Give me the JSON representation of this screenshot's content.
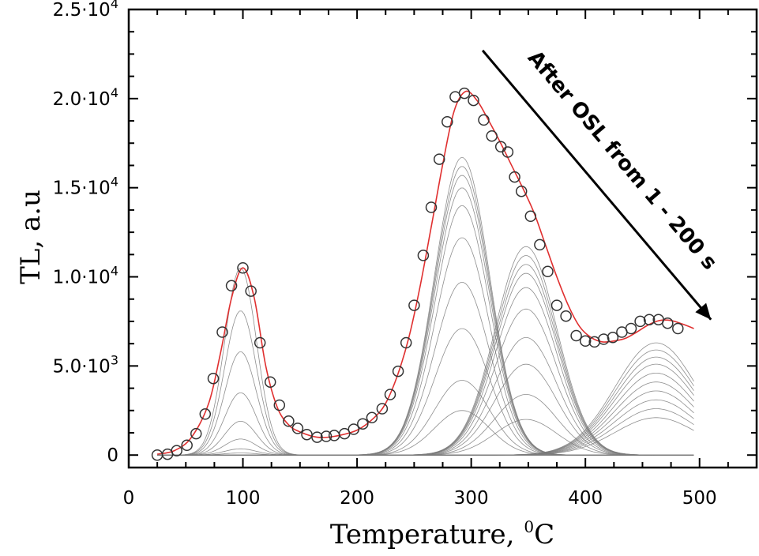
{
  "chart_data": {
    "type": "line",
    "title": "",
    "xlabel": "Temperature,",
    "xlabel_unit_sup": "0",
    "xlabel_unit": "C",
    "ylabel": "TL,  a.u",
    "xlim": [
      0,
      550
    ],
    "ylim": [
      -700,
      25000
    ],
    "x_ticks": [
      0,
      100,
      200,
      300,
      400,
      500
    ],
    "x_tick_labels": [
      "0",
      "100",
      "200",
      "300",
      "400",
      "500"
    ],
    "y_ticks": [
      0,
      5000,
      10000,
      15000,
      20000,
      25000
    ],
    "y_tick_labels": [
      {
        "mantissa": "0",
        "exp": ""
      },
      {
        "mantissa": "5.0·10",
        "exp": "3"
      },
      {
        "mantissa": "1.0·10",
        "exp": "4"
      },
      {
        "mantissa": "1.5·10",
        "exp": "4"
      },
      {
        "mantissa": "2.0·10",
        "exp": "4"
      },
      {
        "mantissa": "2.5·10",
        "exp": "4"
      }
    ],
    "annotation": {
      "text": "After OSL from 1 - 200 s",
      "arrow_from": [
        310,
        22700
      ],
      "arrow_to": [
        510,
        7600
      ]
    },
    "colors": {
      "fit": "#e03030",
      "components": "#7a7a7a",
      "markers": "#333333",
      "axis": "#000000"
    },
    "peaks": [
      {
        "center": 98,
        "sigma": 14,
        "amplitudes": [
          10500,
          8100,
          5800,
          3500,
          1900,
          900,
          350,
          120
        ]
      },
      {
        "center": 292,
        "sigma": 24,
        "amplitudes": [
          16700,
          16200,
          15700,
          15000,
          14000,
          12200,
          9700,
          7100,
          4200,
          2500
        ]
      },
      {
        "center": 348,
        "sigma": 27,
        "amplitudes": [
          11700,
          11200,
          10700,
          10200,
          9400,
          8200,
          6600,
          5100,
          3400,
          2000
        ]
      },
      {
        "center": 462,
        "sigma": 36,
        "amplitudes": [
          6300,
          5900,
          5500,
          5100,
          4600,
          4100,
          3600,
          3100,
          2600,
          2100
        ]
      }
    ],
    "fit_envelope": [
      [
        25,
        50
      ],
      [
        40,
        250
      ],
      [
        55,
        1000
      ],
      [
        70,
        2900
      ],
      [
        80,
        5600
      ],
      [
        90,
        8800
      ],
      [
        100,
        10500
      ],
      [
        110,
        8800
      ],
      [
        120,
        5000
      ],
      [
        130,
        2700
      ],
      [
        140,
        1700
      ],
      [
        150,
        1300
      ],
      [
        165,
        1000
      ],
      [
        180,
        1050
      ],
      [
        200,
        1400
      ],
      [
        215,
        2100
      ],
      [
        225,
        2900
      ],
      [
        235,
        4400
      ],
      [
        245,
        6500
      ],
      [
        255,
        9400
      ],
      [
        265,
        12800
      ],
      [
        275,
        16300
      ],
      [
        285,
        19300
      ],
      [
        295,
        20400
      ],
      [
        305,
        19900
      ],
      [
        315,
        18800
      ],
      [
        325,
        17600
      ],
      [
        335,
        16300
      ],
      [
        345,
        15000
      ],
      [
        355,
        13600
      ],
      [
        365,
        11800
      ],
      [
        375,
        10000
      ],
      [
        385,
        8400
      ],
      [
        395,
        7200
      ],
      [
        405,
        6600
      ],
      [
        415,
        6350
      ],
      [
        425,
        6400
      ],
      [
        435,
        6550
      ],
      [
        445,
        6900
      ],
      [
        455,
        7300
      ],
      [
        465,
        7550
      ],
      [
        475,
        7550
      ],
      [
        485,
        7350
      ],
      [
        495,
        7100
      ]
    ],
    "data_points": [
      [
        25,
        0
      ],
      [
        34,
        50
      ],
      [
        42,
        250
      ],
      [
        51,
        550
      ],
      [
        59,
        1200
      ],
      [
        67,
        2300
      ],
      [
        74,
        4300
      ],
      [
        82,
        6900
      ],
      [
        90,
        9500
      ],
      [
        100,
        10500
      ],
      [
        107,
        9200
      ],
      [
        115,
        6300
      ],
      [
        124,
        4100
      ],
      [
        132,
        2800
      ],
      [
        140,
        1900
      ],
      [
        148,
        1500
      ],
      [
        156,
        1150
      ],
      [
        165,
        1000
      ],
      [
        173,
        1050
      ],
      [
        180,
        1100
      ],
      [
        189,
        1200
      ],
      [
        197,
        1450
      ],
      [
        205,
        1750
      ],
      [
        213,
        2100
      ],
      [
        222,
        2600
      ],
      [
        229,
        3400
      ],
      [
        236,
        4700
      ],
      [
        243,
        6300
      ],
      [
        250,
        8400
      ],
      [
        258,
        11200
      ],
      [
        265,
        13900
      ],
      [
        272,
        16600
      ],
      [
        279,
        18700
      ],
      [
        286,
        20100
      ],
      [
        294,
        20300
      ],
      [
        302,
        19900
      ],
      [
        311,
        18800
      ],
      [
        318,
        17900
      ],
      [
        326,
        17300
      ],
      [
        332,
        17000
      ],
      [
        338,
        15600
      ],
      [
        344,
        14800
      ],
      [
        352,
        13400
      ],
      [
        360,
        11800
      ],
      [
        367,
        10300
      ],
      [
        375,
        8400
      ],
      [
        383,
        7800
      ],
      [
        392,
        6700
      ],
      [
        400,
        6400
      ],
      [
        408,
        6350
      ],
      [
        416,
        6500
      ],
      [
        424,
        6600
      ],
      [
        432,
        6900
      ],
      [
        440,
        7100
      ],
      [
        448,
        7500
      ],
      [
        456,
        7600
      ],
      [
        464,
        7600
      ],
      [
        472,
        7400
      ],
      [
        481,
        7100
      ]
    ]
  }
}
